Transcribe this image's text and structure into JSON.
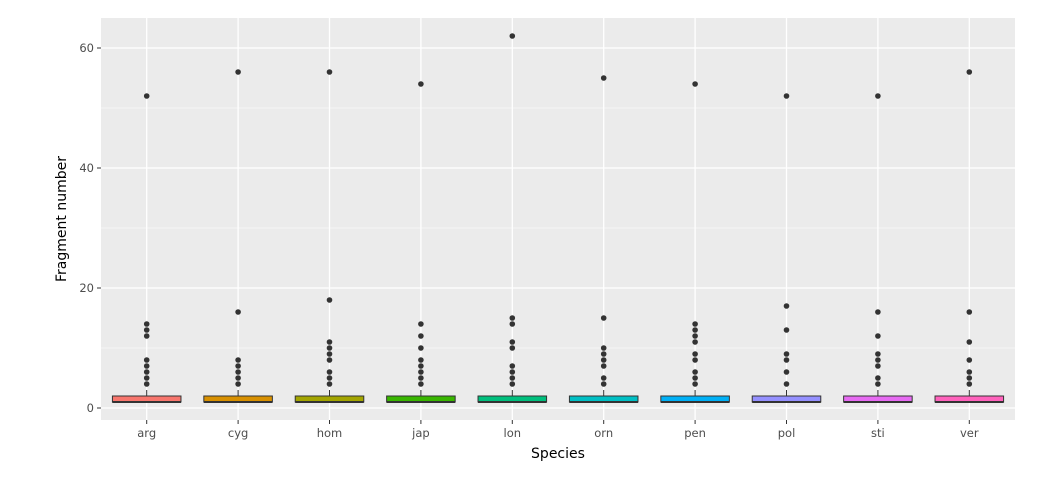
{
  "chart_data": {
    "type": "box",
    "title": "",
    "xlabel": "Species",
    "ylabel": "Fragment number",
    "ylim": [
      -2,
      65
    ],
    "yticks": [
      0,
      20,
      40,
      60
    ],
    "grid": true,
    "legend": "none",
    "categories": [
      "arg",
      "cyg",
      "hom",
      "jap",
      "lon",
      "orn",
      "pen",
      "pol",
      "sti",
      "ver"
    ],
    "colors": [
      "#F8766D",
      "#D89000",
      "#A3A500",
      "#39B600",
      "#00BF7D",
      "#00BFC4",
      "#00B0F6",
      "#9590FF",
      "#E76BF3",
      "#FF62BC"
    ],
    "boxes": [
      {
        "q1": 1,
        "median": 1,
        "q3": 2,
        "whisker_low": 1,
        "whisker_high": 3,
        "outliers": [
          4,
          5,
          6,
          7,
          8,
          12,
          13,
          14,
          52
        ]
      },
      {
        "q1": 1,
        "median": 1,
        "q3": 2,
        "whisker_low": 1,
        "whisker_high": 3,
        "outliers": [
          4,
          5,
          6,
          7,
          8,
          16,
          56
        ]
      },
      {
        "q1": 1,
        "median": 1,
        "q3": 2,
        "whisker_low": 1,
        "whisker_high": 3,
        "outliers": [
          4,
          5,
          6,
          8,
          9,
          10,
          11,
          18,
          56
        ]
      },
      {
        "q1": 1,
        "median": 1,
        "q3": 2,
        "whisker_low": 1,
        "whisker_high": 3,
        "outliers": [
          4,
          5,
          6,
          7,
          8,
          10,
          12,
          14,
          54
        ]
      },
      {
        "q1": 1,
        "median": 1,
        "q3": 2,
        "whisker_low": 1,
        "whisker_high": 3,
        "outliers": [
          4,
          5,
          6,
          7,
          10,
          11,
          14,
          15,
          62
        ]
      },
      {
        "q1": 1,
        "median": 1,
        "q3": 2,
        "whisker_low": 1,
        "whisker_high": 3,
        "outliers": [
          4,
          5,
          7,
          8,
          9,
          10,
          15,
          55
        ]
      },
      {
        "q1": 1,
        "median": 1,
        "q3": 2,
        "whisker_low": 1,
        "whisker_high": 3,
        "outliers": [
          4,
          5,
          6,
          8,
          9,
          11,
          12,
          13,
          14,
          54
        ]
      },
      {
        "q1": 1,
        "median": 1,
        "q3": 2,
        "whisker_low": 1,
        "whisker_high": 3,
        "outliers": [
          4,
          6,
          8,
          9,
          13,
          17,
          52
        ]
      },
      {
        "q1": 1,
        "median": 1,
        "q3": 2,
        "whisker_low": 1,
        "whisker_high": 3,
        "outliers": [
          4,
          5,
          7,
          8,
          9,
          12,
          16,
          52
        ]
      },
      {
        "q1": 1,
        "median": 1,
        "q3": 2,
        "whisker_low": 1,
        "whisker_high": 3,
        "outliers": [
          4,
          5,
          6,
          8,
          11,
          16,
          56
        ]
      }
    ]
  }
}
